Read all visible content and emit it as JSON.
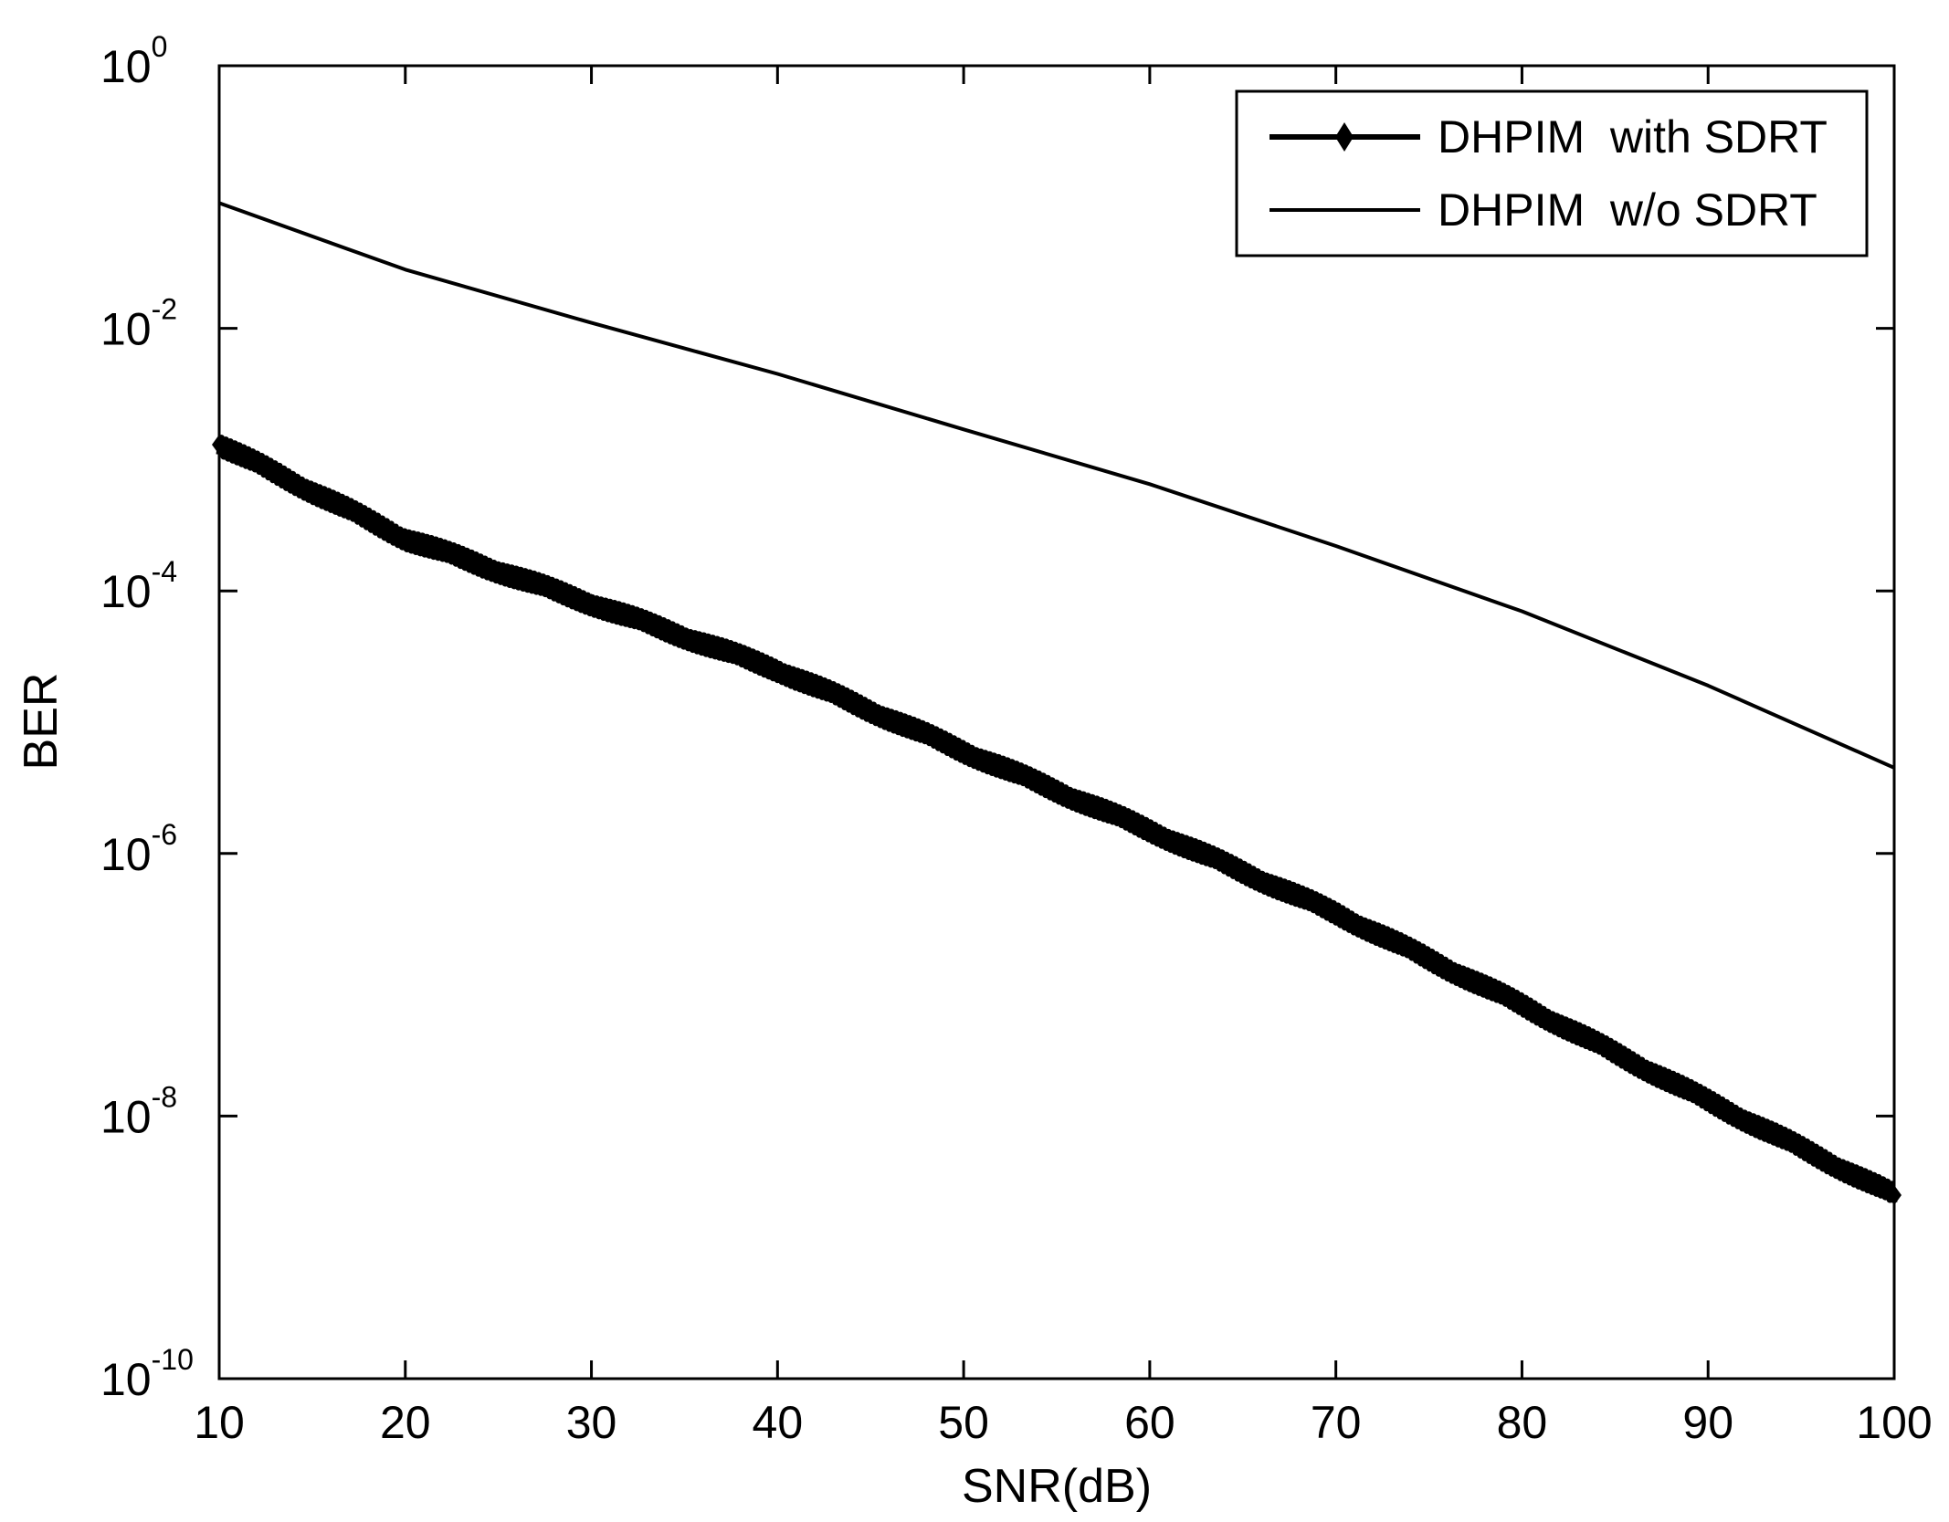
{
  "chart_data": {
    "type": "line",
    "xlabel": "SNR(dB)",
    "ylabel": "BER",
    "xscale": "linear",
    "yscale": "log",
    "xlim": [
      10,
      100
    ],
    "ylim": [
      1e-10,
      1
    ],
    "x_ticks": [
      10,
      20,
      30,
      40,
      50,
      60,
      70,
      80,
      90,
      100
    ],
    "y_ticks": [
      {
        "value": 1,
        "base": "10",
        "exp": "0"
      },
      {
        "value": 0.01,
        "base": "10",
        "exp": "-2"
      },
      {
        "value": 0.0001,
        "base": "10",
        "exp": "-4"
      },
      {
        "value": 1e-06,
        "base": "10",
        "exp": "-6"
      },
      {
        "value": 1e-08,
        "base": "10",
        "exp": "-8"
      },
      {
        "value": 1e-10,
        "base": "10",
        "exp": "-10"
      }
    ],
    "grid": false,
    "legend_position": "top-right",
    "line_color": "#000000",
    "series": [
      {
        "name": "DHPIM  with SDRT",
        "marker": "diamond",
        "noisy": true,
        "x": [
          10,
          20,
          30,
          40,
          50,
          60,
          70,
          80,
          90,
          100
        ],
        "y": [
          0.0013,
          0.00025,
          8e-05,
          2.5e-05,
          6e-06,
          1.5e-06,
          3.5e-07,
          7e-08,
          1.3e-08,
          2.5e-09
        ]
      },
      {
        "name": "DHPIM  w/o SDRT",
        "marker": "none",
        "noisy": false,
        "x": [
          10,
          20,
          30,
          40,
          50,
          60,
          70,
          80,
          90,
          100
        ],
        "y": [
          0.09,
          0.028,
          0.011,
          0.0045,
          0.0017,
          0.00065,
          0.00022,
          7e-05,
          1.9e-05,
          4.5e-06
        ]
      }
    ]
  }
}
